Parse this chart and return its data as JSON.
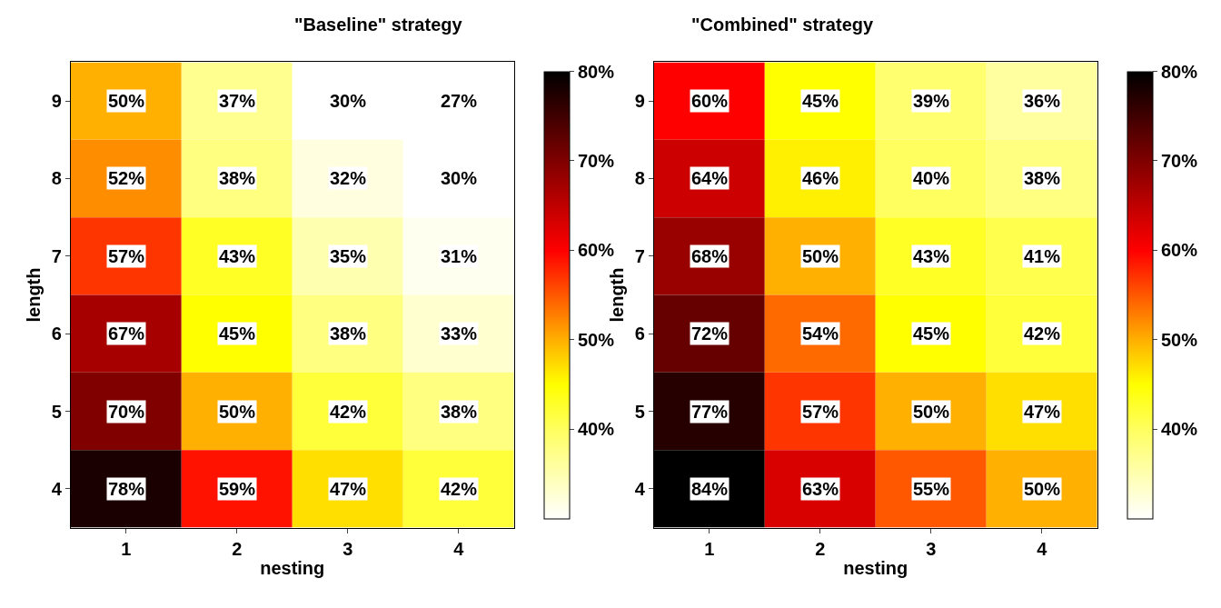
{
  "chart_data": [
    {
      "type": "heatmap",
      "title": "\"Baseline\" strategy",
      "xlabel": "nesting",
      "ylabel": "length",
      "categories": [
        "1",
        "2",
        "3",
        "4"
      ],
      "y_categories": [
        "9",
        "8",
        "7",
        "6",
        "5",
        "4"
      ],
      "cells": [
        [
          50,
          37,
          30,
          27
        ],
        [
          52,
          38,
          32,
          30
        ],
        [
          57,
          43,
          35,
          31
        ],
        [
          67,
          45,
          38,
          33
        ],
        [
          70,
          50,
          42,
          38
        ],
        [
          78,
          59,
          47,
          42
        ]
      ],
      "cell_labels": [
        [
          "50%",
          "37%",
          "30%",
          "27%"
        ],
        [
          "52%",
          "38%",
          "32%",
          "30%"
        ],
        [
          "57%",
          "43%",
          "35%",
          "31%"
        ],
        [
          "67%",
          "45%",
          "38%",
          "33%"
        ],
        [
          "70%",
          "50%",
          "42%",
          "38%"
        ],
        [
          "78%",
          "59%",
          "47%",
          "42%"
        ]
      ],
      "clim": [
        30,
        80
      ],
      "cticks": [
        {
          "value": 40,
          "label": "40%"
        },
        {
          "value": 50,
          "label": "50%"
        },
        {
          "value": 60,
          "label": "60%"
        },
        {
          "value": 70,
          "label": "70%"
        },
        {
          "value": 80,
          "label": "80%"
        }
      ]
    },
    {
      "type": "heatmap",
      "title": "\"Combined\" strategy",
      "xlabel": "nesting",
      "ylabel": "length",
      "categories": [
        "1",
        "2",
        "3",
        "4"
      ],
      "y_categories": [
        "9",
        "8",
        "7",
        "6",
        "5",
        "4"
      ],
      "cells": [
        [
          60,
          45,
          39,
          36
        ],
        [
          64,
          46,
          40,
          38
        ],
        [
          68,
          50,
          43,
          41
        ],
        [
          72,
          54,
          45,
          42
        ],
        [
          77,
          57,
          50,
          47
        ],
        [
          84,
          63,
          55,
          50
        ]
      ],
      "cell_labels": [
        [
          "60%",
          "45%",
          "39%",
          "36%"
        ],
        [
          "64%",
          "46%",
          "40%",
          "38%"
        ],
        [
          "68%",
          "50%",
          "43%",
          "41%"
        ],
        [
          "72%",
          "54%",
          "45%",
          "42%"
        ],
        [
          "77%",
          "57%",
          "50%",
          "47%"
        ],
        [
          "84%",
          "63%",
          "55%",
          "50%"
        ]
      ],
      "clim": [
        30,
        80
      ],
      "cticks": [
        {
          "value": 40,
          "label": "40%"
        },
        {
          "value": 50,
          "label": "50%"
        },
        {
          "value": 60,
          "label": "60%"
        },
        {
          "value": 70,
          "label": "70%"
        },
        {
          "value": 80,
          "label": "80%"
        }
      ]
    }
  ]
}
